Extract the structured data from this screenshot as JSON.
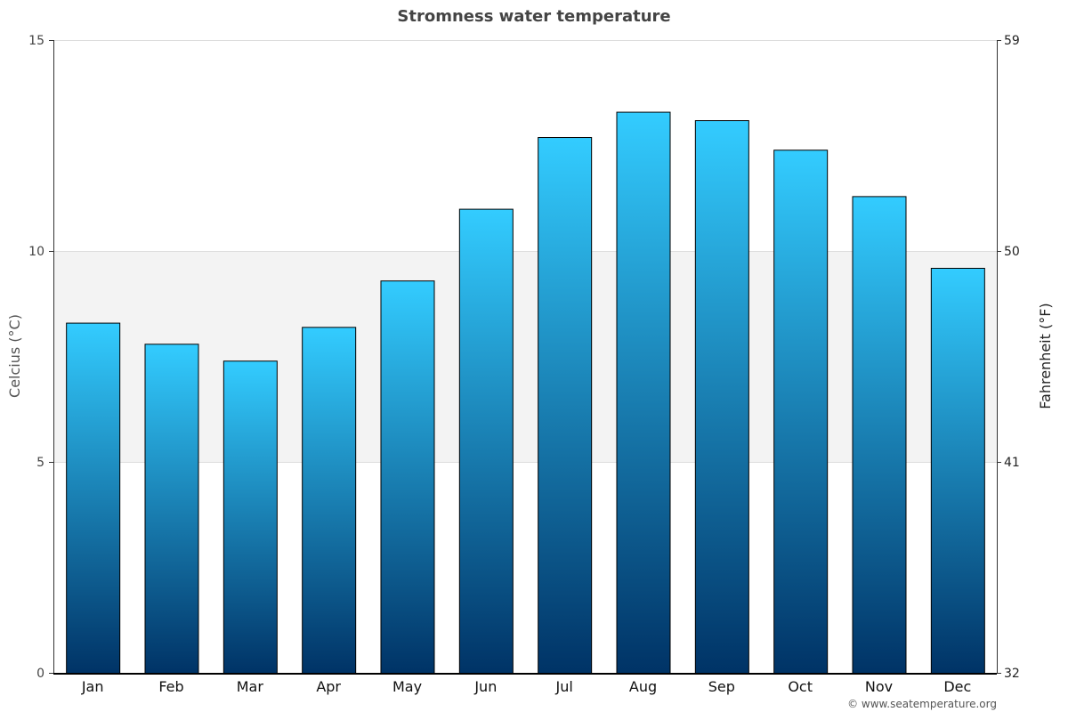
{
  "chart_data": {
    "type": "bar",
    "title": "Stromness water temperature",
    "ylabel": "Celcius (°C)",
    "y2label": "Fahrenheit (°F)",
    "categories": [
      "Jan",
      "Feb",
      "Mar",
      "Apr",
      "May",
      "Jun",
      "Jul",
      "Aug",
      "Sep",
      "Oct",
      "Nov",
      "Dec"
    ],
    "values": [
      8.3,
      7.8,
      7.4,
      8.2,
      9.3,
      11.0,
      12.7,
      13.3,
      13.1,
      12.4,
      11.3,
      9.6
    ],
    "ylim": [
      0,
      15
    ],
    "yticks": [
      "0",
      "5",
      "10",
      "15"
    ],
    "y2ticks": [
      "32",
      "41",
      "50",
      "59"
    ],
    "shaded_band": [
      5,
      10
    ],
    "colors": {
      "bar_top": "#33ccff",
      "bar_bottom": "#003366",
      "band": "#f3f3f3"
    },
    "grid": true
  },
  "footer": "© www.seatemperature.org"
}
